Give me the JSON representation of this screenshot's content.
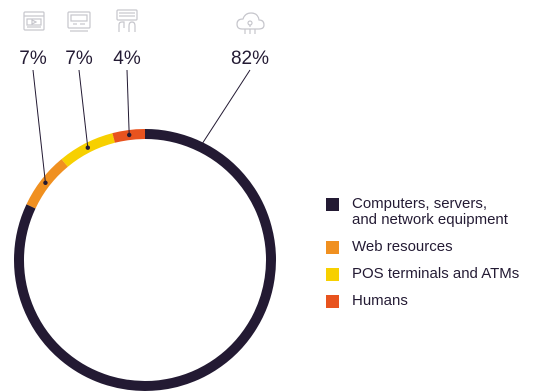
{
  "colors": {
    "text": "#231a33",
    "icon": "#c6c6cc",
    "leader": "#231a33"
  },
  "chart_data": {
    "type": "donut",
    "unit": "%",
    "segments": [
      {
        "name": "Computers, servers,\nand network equipment",
        "value": 82,
        "label": "82%",
        "color": "#231a33",
        "icon": "cloud-network-icon"
      },
      {
        "name": "Web resources",
        "value": 7,
        "label": "7%",
        "color": "#f09020",
        "icon": "web-browser-icon"
      },
      {
        "name": "POS terminals and ATMs",
        "value": 7,
        "label": "7%",
        "color": "#f7d000",
        "icon": "pos-terminal-icon"
      },
      {
        "name": "Humans",
        "value": 4,
        "label": "4%",
        "color": "#e8531e",
        "icon": "human-hand-icon"
      }
    ],
    "legend_position": "right"
  }
}
